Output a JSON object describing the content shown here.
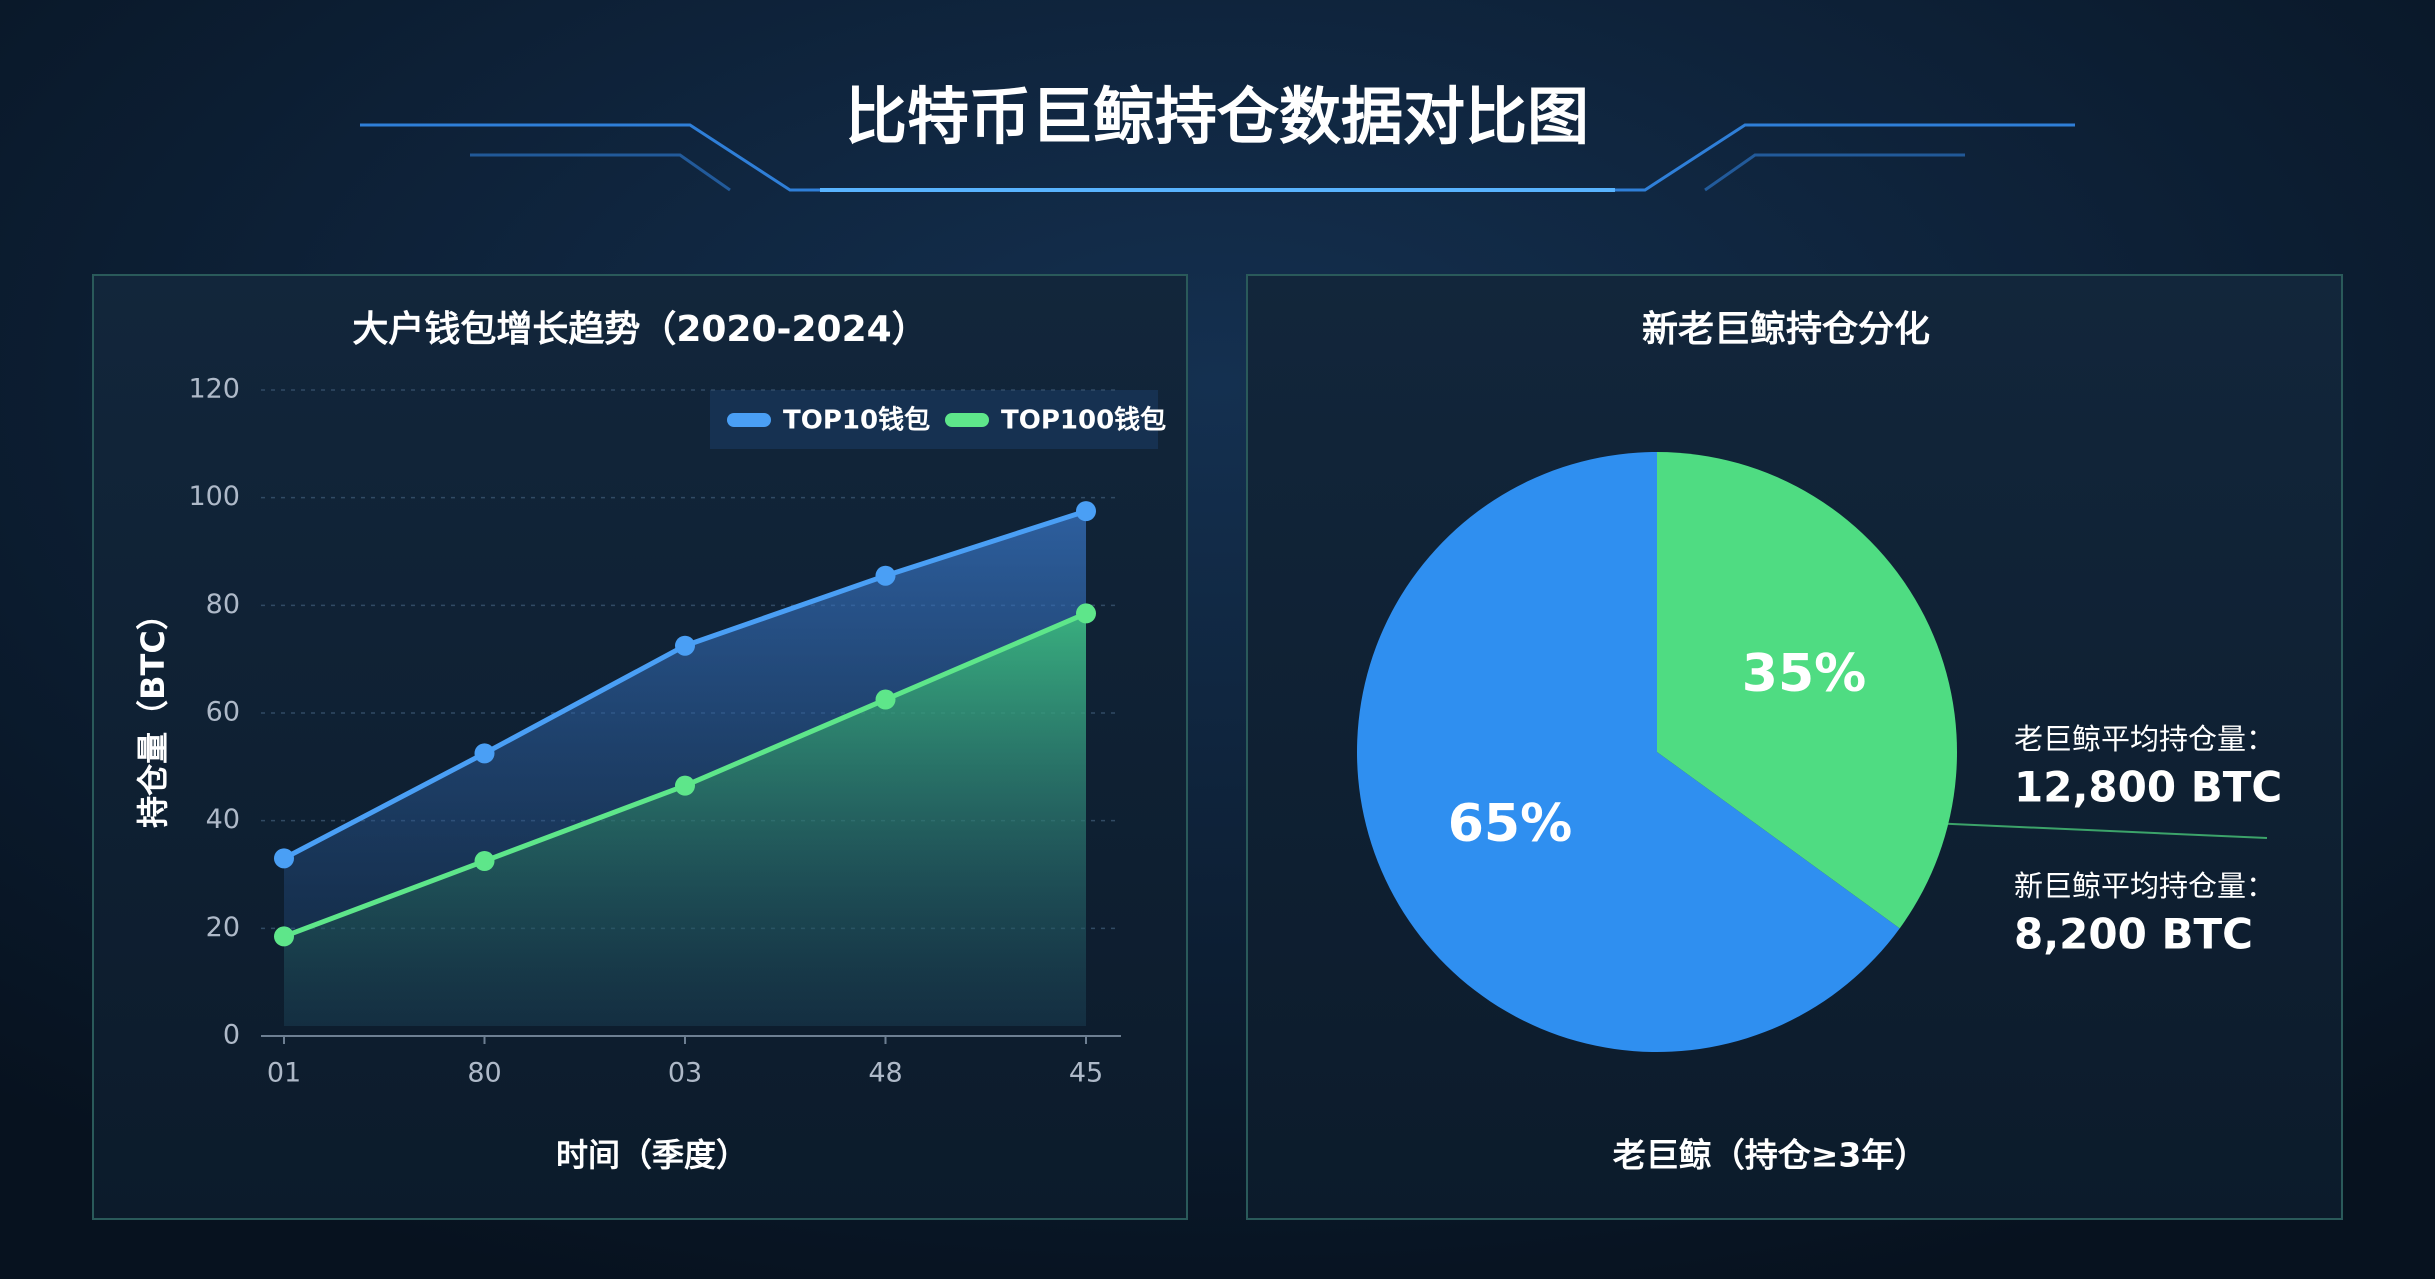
{
  "title": "比特币巨鲸持仓数据对比图",
  "chart_data": [
    {
      "type": "line",
      "title": "大户钱包增长趋势（2020-2024）",
      "ylabel": "持仓量（BTC）",
      "xlabel": "时间（季度）",
      "categories": [
        "01",
        "80",
        "03",
        "48",
        "45"
      ],
      "series": [
        {
          "name": "TOP10钱包",
          "color": "#4a9ff5",
          "values": [
            33,
            52.5,
            72.5,
            85.5,
            97.5
          ]
        },
        {
          "name": "TOP100钱包",
          "color": "#5ee68a",
          "values": [
            18.5,
            32.5,
            46.5,
            62.5,
            78.5
          ]
        }
      ],
      "ylim": [
        0,
        120
      ],
      "yticks": [
        0,
        20,
        40,
        60,
        80,
        100,
        120
      ],
      "grid": true,
      "legend": "top-right"
    },
    {
      "type": "pie",
      "title": "新老巨鲸持仓分化",
      "values": [
        65,
        35
      ],
      "value_labels": [
        "65%",
        "35%"
      ],
      "colors": [
        "#2f8ff0",
        "#4fdc82"
      ],
      "annotations": [
        {
          "label": "老巨鲸平均持仓量：",
          "value": "12,800 BTC"
        },
        {
          "label": "新巨鲸平均持仓量：",
          "value": "8,200 BTC"
        }
      ],
      "caption": "老巨鲸（持仓≥3年）"
    }
  ]
}
